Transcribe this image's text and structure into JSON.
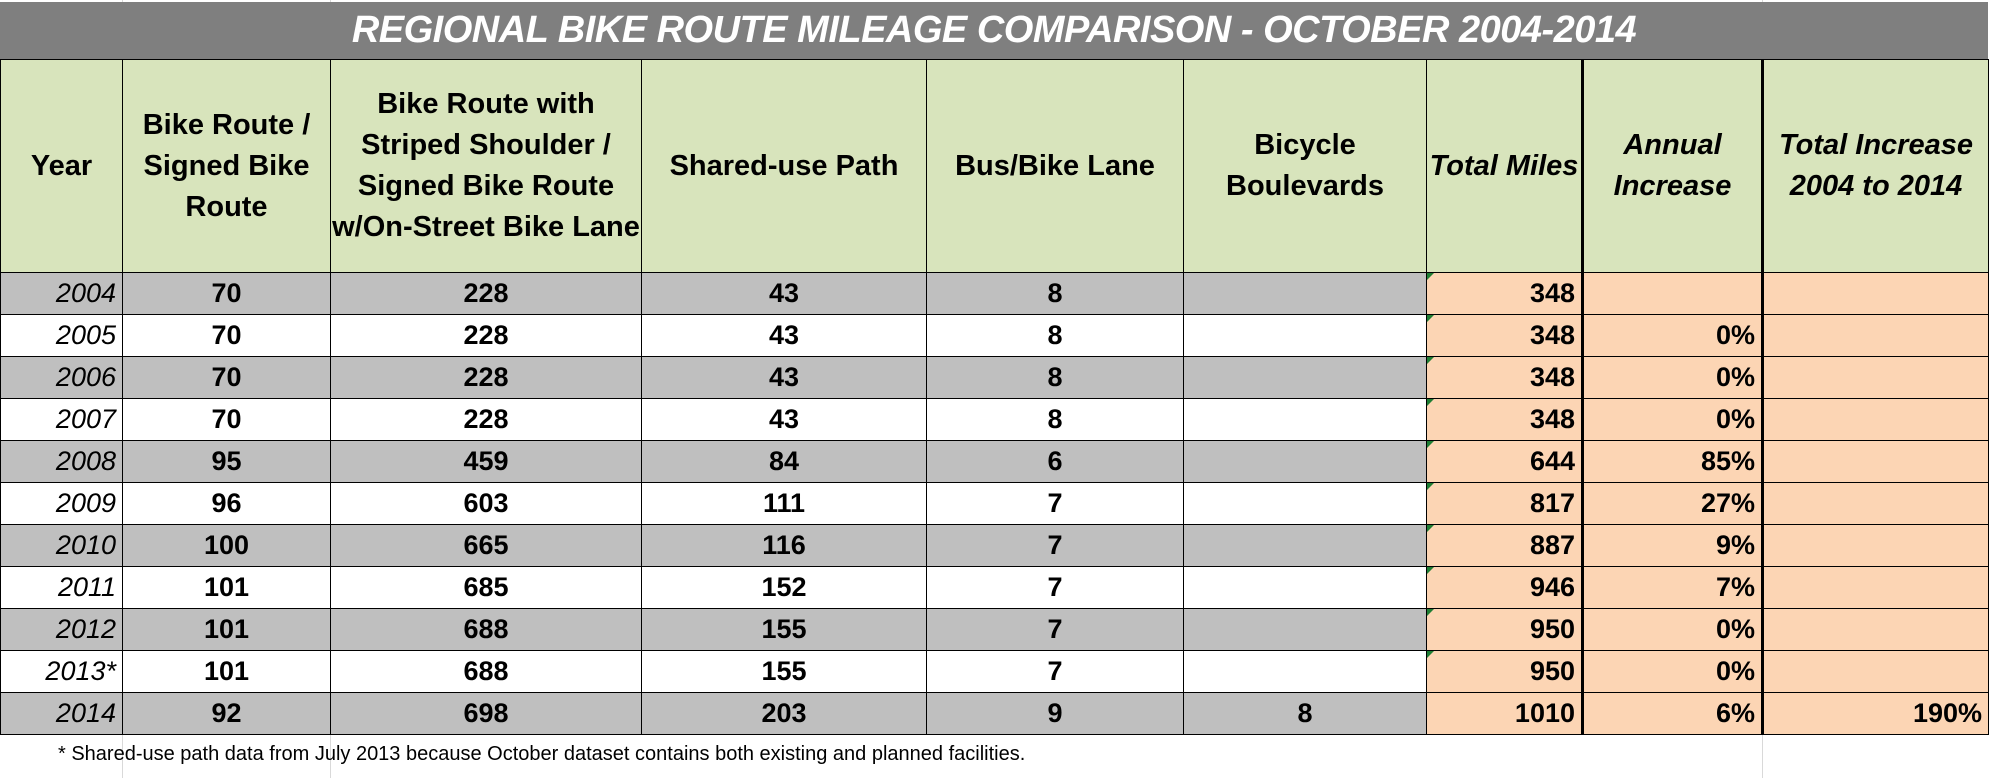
{
  "title": "REGIONAL BIKE ROUTE MILEAGE COMPARISON - OCTOBER 2004-2014",
  "headers": {
    "year": "Year",
    "signed": "Bike Route / Signed Bike Route",
    "striped": "Bike Route with Striped Shoulder / Signed Bike Route w/On-Street Bike Lane",
    "shared": "Shared-use Path",
    "bus": "Bus/Bike Lane",
    "boulevards": "Bicycle Boulevards",
    "total": "Total Miles",
    "annual": "Annual Increase",
    "total_increase": "Total Increase 2004 to 2014"
  },
  "rows": [
    {
      "year": "2004",
      "signed": "70",
      "striped": "228",
      "shared": "43",
      "bus": "8",
      "boulevards": "",
      "total": "348",
      "annual": "",
      "total_increase": ""
    },
    {
      "year": "2005",
      "signed": "70",
      "striped": "228",
      "shared": "43",
      "bus": "8",
      "boulevards": "",
      "total": "348",
      "annual": "0%",
      "total_increase": ""
    },
    {
      "year": "2006",
      "signed": "70",
      "striped": "228",
      "shared": "43",
      "bus": "8",
      "boulevards": "",
      "total": "348",
      "annual": "0%",
      "total_increase": ""
    },
    {
      "year": "2007",
      "signed": "70",
      "striped": "228",
      "shared": "43",
      "bus": "8",
      "boulevards": "",
      "total": "348",
      "annual": "0%",
      "total_increase": ""
    },
    {
      "year": "2008",
      "signed": "95",
      "striped": "459",
      "shared": "84",
      "bus": "6",
      "boulevards": "",
      "total": "644",
      "annual": "85%",
      "total_increase": ""
    },
    {
      "year": "2009",
      "signed": "96",
      "striped": "603",
      "shared": "111",
      "bus": "7",
      "boulevards": "",
      "total": "817",
      "annual": "27%",
      "total_increase": ""
    },
    {
      "year": "2010",
      "signed": "100",
      "striped": "665",
      "shared": "116",
      "bus": "7",
      "boulevards": "",
      "total": "887",
      "annual": "9%",
      "total_increase": ""
    },
    {
      "year": "2011",
      "signed": "101",
      "striped": "685",
      "shared": "152",
      "bus": "7",
      "boulevards": "",
      "total": "946",
      "annual": "7%",
      "total_increase": ""
    },
    {
      "year": "2012",
      "signed": "101",
      "striped": "688",
      "shared": "155",
      "bus": "7",
      "boulevards": "",
      "total": "950",
      "annual": "0%",
      "total_increase": ""
    },
    {
      "year": "2013*",
      "signed": "101",
      "striped": "688",
      "shared": "155",
      "bus": "7",
      "boulevards": "",
      "total": "950",
      "annual": "0%",
      "total_increase": ""
    },
    {
      "year": "2014",
      "signed": "92",
      "striped": "698",
      "shared": "203",
      "bus": "9",
      "boulevards": "8",
      "total": "1010",
      "annual": "6%",
      "total_increase": "190%"
    }
  ],
  "footnote": "* Shared-use path data from July 2013 because October dataset contains both existing and planned facilities.",
  "colors": {
    "title_bg": "#7f7f7f",
    "header_bg": "#d8e4bc",
    "stripe_gray": "#bfbfbf",
    "total_bg": "#fcd5b4",
    "comment_marker": "#1e7e34"
  }
}
